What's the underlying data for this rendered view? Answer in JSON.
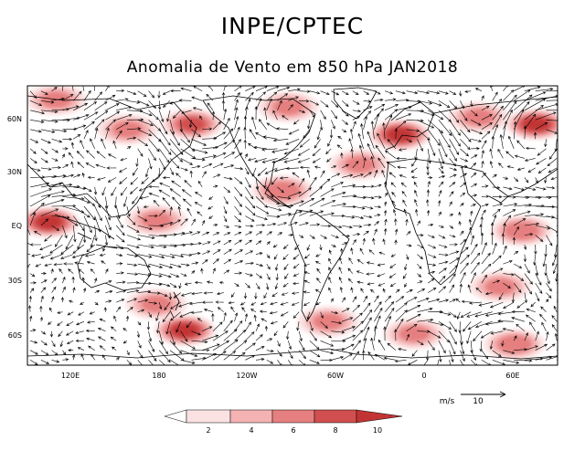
{
  "title": "INPE/CPTEC",
  "subtitle": "Anomalia de Vento em 850 hPa JAN2018",
  "lat_labels": [
    "60N",
    "30N",
    "EQ",
    "30S",
    "60S"
  ],
  "lon_labels": [
    "120E",
    "180",
    "120W",
    "60W",
    "0",
    "60E"
  ],
  "vector_ref": {
    "units_label": "m/s",
    "value_label": "10",
    "value": 10
  },
  "colorbar": {
    "ticks": [
      "2",
      "4",
      "6",
      "8",
      "10"
    ],
    "colors": [
      "#ffffff",
      "#fbe2e2",
      "#f4b2b2",
      "#e67f7f",
      "#d24f4f",
      "#c23434"
    ]
  },
  "chart_data": {
    "type": "map",
    "title": "INPE/CPTEC",
    "subtitle": "Anomalia de Vento em 850 hPa JAN2018",
    "variable": "850 hPa wind anomaly vectors, shaded by magnitude (m/s)",
    "lon_range": [
      80,
      450
    ],
    "lat_range": [
      -80,
      80
    ],
    "shading_levels": [
      2,
      4,
      6,
      8,
      10
    ],
    "anomaly_centers": [
      {
        "lon": 100,
        "lat": 72,
        "speed": 6
      },
      {
        "lon": 150,
        "lat": 55,
        "speed": 6
      },
      {
        "lon": 195,
        "lat": 58,
        "speed": 8
      },
      {
        "lon": 262,
        "lat": 68,
        "speed": 6
      },
      {
        "lon": 258,
        "lat": 20,
        "speed": 7
      },
      {
        "lon": 340,
        "lat": 52,
        "speed": 10
      },
      {
        "lon": 395,
        "lat": 62,
        "speed": 6
      },
      {
        "lon": 435,
        "lat": 58,
        "speed": 10
      },
      {
        "lon": 312,
        "lat": 35,
        "speed": 6
      },
      {
        "lon": 95,
        "lat": 2,
        "speed": 10
      },
      {
        "lon": 170,
        "lat": 3,
        "speed": 6
      },
      {
        "lon": 425,
        "lat": -3,
        "speed": 7
      },
      {
        "lon": 190,
        "lat": -60,
        "speed": 10
      },
      {
        "lon": 170,
        "lat": -45,
        "speed": 6
      },
      {
        "lon": 290,
        "lat": -55,
        "speed": 6
      },
      {
        "lon": 350,
        "lat": -62,
        "speed": 6
      },
      {
        "lon": 420,
        "lat": -68,
        "speed": 7
      },
      {
        "lon": 410,
        "lat": -35,
        "speed": 6
      }
    ]
  }
}
